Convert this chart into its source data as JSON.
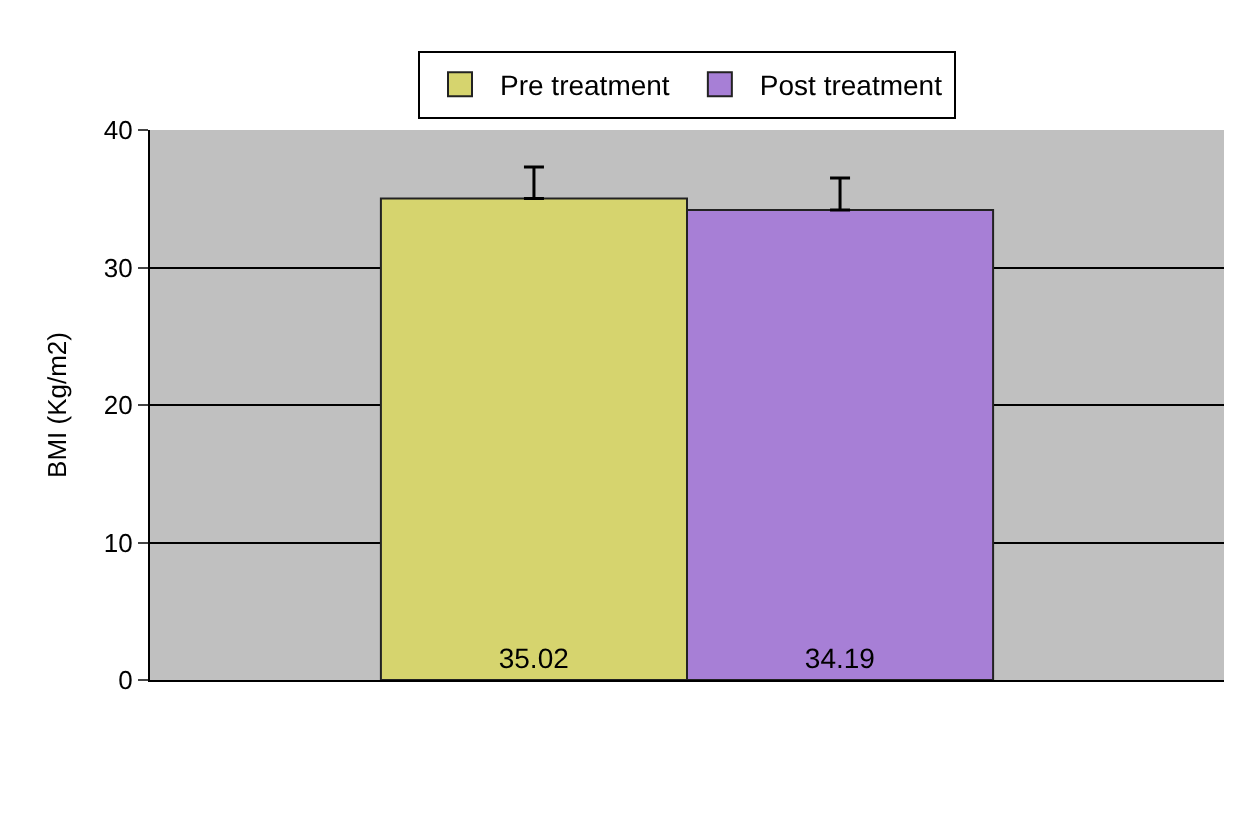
{
  "chart_data": {
    "type": "bar",
    "ylabel": "BMI (Kg/m2)",
    "categories": [
      null
    ],
    "series": [
      {
        "name": "Pre treatment",
        "color": "#d6d46e",
        "values": [
          35.02
        ],
        "errors": [
          [
            35.02,
            37.3
          ]
        ]
      },
      {
        "name": "Post treatment",
        "color": "#a77fd6",
        "values": [
          34.19
        ],
        "errors": [
          [
            34.19,
            36.5
          ]
        ]
      }
    ],
    "ylim": [
      0,
      40
    ],
    "yticks": [
      0,
      10,
      20,
      30,
      40
    ],
    "grid": "y",
    "legend": "top",
    "data_labels": true
  }
}
